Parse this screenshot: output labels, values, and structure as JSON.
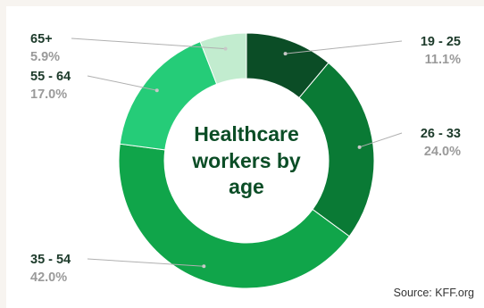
{
  "chart_data": {
    "type": "pie",
    "title_lines": [
      "Healthcare",
      "workers by",
      "age"
    ],
    "categories": [
      "19 - 25",
      "26 - 33",
      "35 - 54",
      "55 - 64",
      "65+"
    ],
    "values": [
      11.1,
      24.0,
      42.0,
      17.0,
      5.9
    ],
    "value_labels": [
      "11.1%",
      "24.0%",
      "42.0%",
      "17.0%",
      "5.9%"
    ],
    "colors": [
      "#0b4d26",
      "#0a7a35",
      "#10a54a",
      "#25cc78",
      "#c2eccf"
    ],
    "source": "Source: KFF.org"
  }
}
